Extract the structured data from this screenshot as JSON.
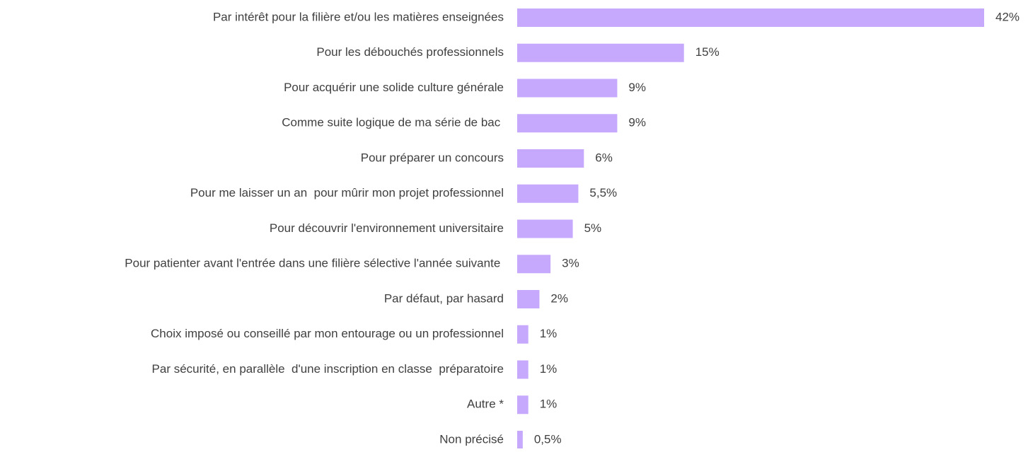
{
  "chart_data": {
    "type": "bar",
    "orientation": "horizontal",
    "categories": [
      "Par intérêt pour la filière et/ou les matières enseignées",
      "Pour les débouchés professionnels",
      "Pour acquérir une solide culture générale",
      "Comme suite logique de ma série de bac ",
      "Pour préparer un concours",
      "Pour me laisser un an  pour mûrir mon projet professionnel",
      "Pour découvrir l'environnement universitaire",
      "Pour patienter avant l'entrée dans une filière sélective l'année suivante ",
      "Par défaut, par hasard",
      "Choix imposé ou conseillé par mon entourage ou un professionnel",
      "Par sécurité, en parallèle  d'une inscription en classe  préparatoire",
      "Autre *",
      "Non précisé"
    ],
    "values": [
      42,
      15,
      9,
      9,
      6,
      5.5,
      5,
      3,
      2,
      1,
      1,
      1,
      0.5
    ],
    "value_labels": [
      "42%",
      "15%",
      "9%",
      "9%",
      "6%",
      "5,5%",
      "5%",
      "3%",
      "2%",
      "1%",
      "1%",
      "1%",
      "0,5%"
    ],
    "color": "#c6a8fc"
  }
}
